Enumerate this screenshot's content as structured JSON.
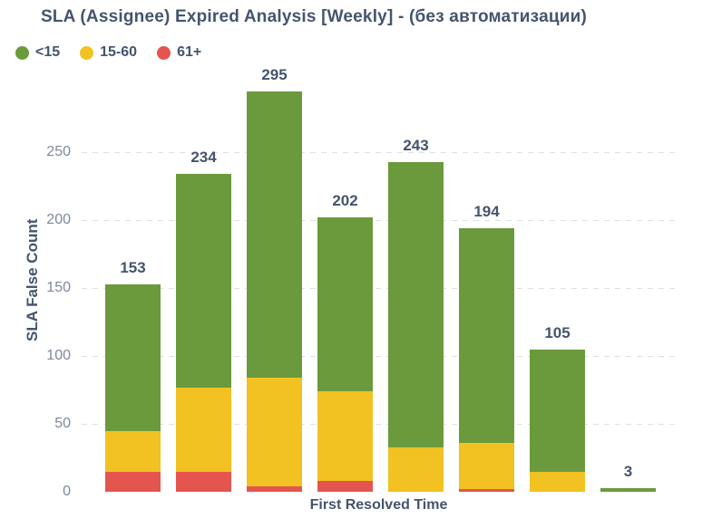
{
  "chart_data": {
    "type": "bar",
    "stacked": true,
    "title": "SLA (Assignee) Expired Analysis [Weekly] - (без автоматизации)",
    "xlabel": "First Resolved Time",
    "ylabel": "SLA False Count",
    "ylim": [
      0,
      250
    ],
    "yticks": [
      0,
      50,
      100,
      150,
      200,
      250
    ],
    "grid": "horizontal-dashed",
    "legend_position": "top-left",
    "bar_totals": [
      153,
      234,
      295,
      202,
      243,
      194,
      105,
      3
    ],
    "series": [
      {
        "name": "<15",
        "color": "#6a9a3c",
        "values": [
          108,
          157,
          211,
          128,
          210,
          158,
          90,
          3
        ]
      },
      {
        "name": "15-60",
        "color": "#f2c122",
        "values": [
          30,
          62,
          80,
          66,
          33,
          34,
          15,
          0
        ]
      },
      {
        "name": "61+",
        "color": "#e4554f",
        "values": [
          15,
          15,
          4,
          8,
          0,
          2,
          0,
          0
        ]
      }
    ],
    "colors": {
      "title": "#44546e",
      "tick": "#7e8899",
      "gridline": "#dcdfe4",
      "background": "#ffffff"
    }
  }
}
